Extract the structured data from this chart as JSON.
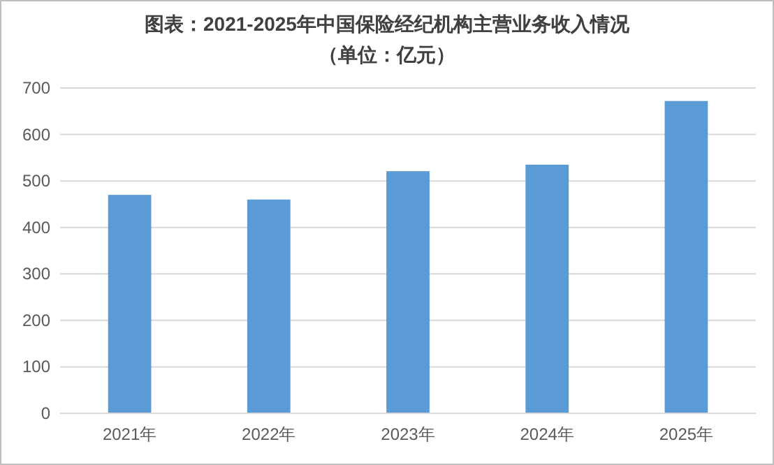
{
  "chart_data": {
    "type": "bar",
    "title": "图表：2021-2025年中国保险经纪机构主营业务收入情况",
    "subtitle": "（单位：亿元）",
    "categories": [
      "2021年",
      "2022年",
      "2023年",
      "2024年",
      "2025年"
    ],
    "values": [
      470,
      460,
      521,
      535,
      672
    ],
    "color": "#5b9bd5",
    "ylim": [
      0,
      700
    ],
    "yticks": [
      0,
      100,
      200,
      300,
      400,
      500,
      600,
      700
    ],
    "grid": "y"
  }
}
